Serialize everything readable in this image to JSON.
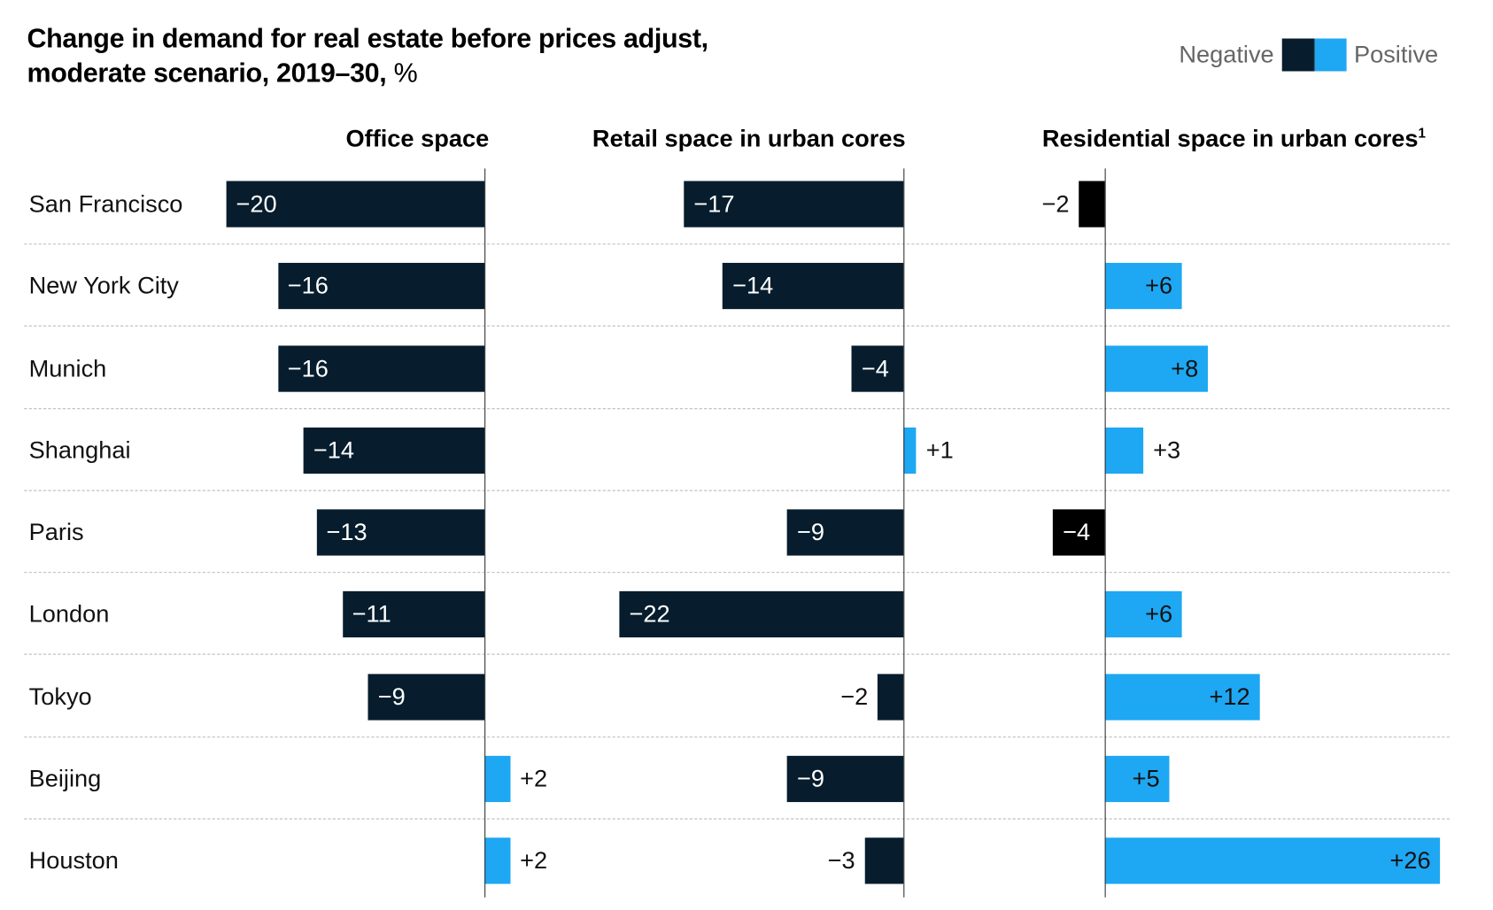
{
  "chart_data": {
    "type": "bar",
    "orientation": "horizontal",
    "title": "Change in demand for real estate before prices adjust, moderate scenario, 2019–30,",
    "title_line1": "Change in demand for real estate before prices adjust,",
    "title_line2": "moderate scenario, 2019–30,",
    "unit": "%",
    "legend": {
      "negative": "Negative",
      "positive": "Positive",
      "placement": "top-right"
    },
    "colors": {
      "negative": "#071d2d",
      "negative_residential": "#000000",
      "positive": "#1ea7f2"
    },
    "categories": [
      "San Francisco",
      "New York City",
      "Munich",
      "Shanghai",
      "Paris",
      "London",
      "Tokyo",
      "Beijing",
      "Houston"
    ],
    "series": [
      {
        "name": "Office space",
        "values": [
          -20,
          -16,
          -16,
          -14,
          -13,
          -11,
          -9,
          2,
          2
        ]
      },
      {
        "name": "Retail space in urban cores",
        "values": [
          -17,
          -14,
          -4,
          1,
          -9,
          -22,
          -2,
          -9,
          -3
        ]
      },
      {
        "name": "Residential space in urban cores",
        "footnote": "1",
        "values": [
          -2,
          6,
          8,
          3,
          -4,
          6,
          12,
          5,
          26
        ]
      }
    ]
  }
}
